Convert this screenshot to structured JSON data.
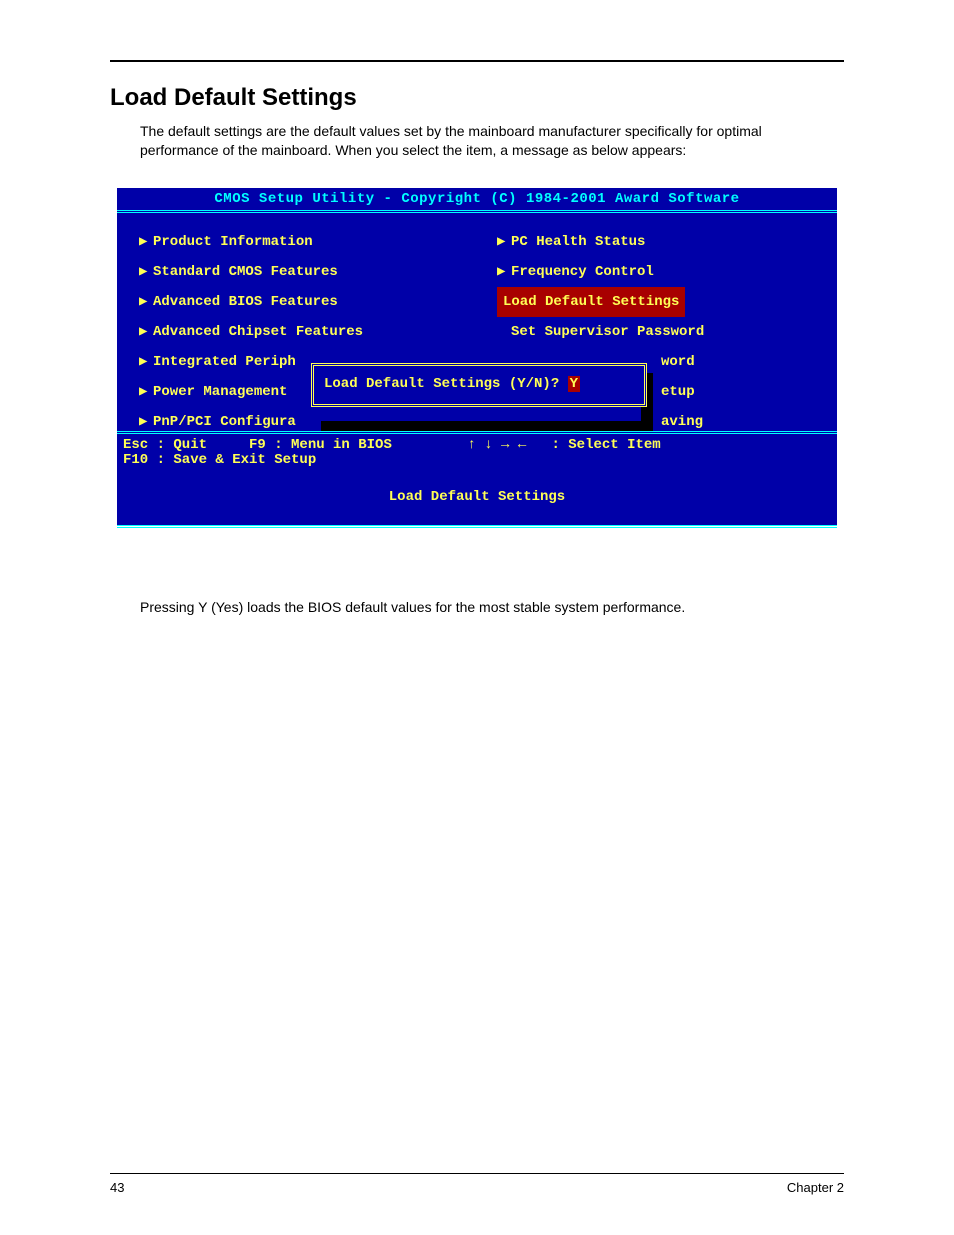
{
  "page": {
    "section_title": "Load Default Settings",
    "intro_paragraph": "The default settings are the default values set by the mainboard manufacturer specifically for optimal performance of the mainboard.  When you select the item, a message as below appears:",
    "post_paragraph": "Pressing Y (Yes) loads the BIOS default values for the most stable system performance.",
    "page_number": "43",
    "chapter_label": "Chapter 2"
  },
  "bios": {
    "colors": {
      "background": "#0000a8",
      "text_primary": "#ffff55",
      "text_header": "#00ffff",
      "highlight_bg": "#a80000",
      "shadow": "#000000"
    },
    "header": "CMOS Setup Utility - Copyright (C) 1984-2001 Award Software",
    "left_menu": [
      {
        "marker": "▶",
        "label": "Product Information"
      },
      {
        "marker": "▶",
        "label": "Standard CMOS Features"
      },
      {
        "marker": "▶",
        "label": "Advanced BIOS Features"
      },
      {
        "marker": "▶",
        "label": "Advanced Chipset Features"
      },
      {
        "marker": "▶",
        "label": "Integrated Periph"
      },
      {
        "marker": "▶",
        "label": "Power Management"
      },
      {
        "marker": "▶",
        "label": "PnP/PCI Configura"
      }
    ],
    "right_menu": [
      {
        "marker": "▶",
        "label": "PC Health Status"
      },
      {
        "marker": "▶",
        "label": "Frequency Control"
      },
      {
        "marker": "",
        "label": "Load Default Settings",
        "selected": true
      },
      {
        "marker": "",
        "label": "Set Supervisor Password"
      },
      {
        "marker": "",
        "label": "word",
        "fragment": true
      },
      {
        "marker": "",
        "label": "etup",
        "fragment": true
      },
      {
        "marker": "",
        "label": "aving",
        "fragment": true
      }
    ],
    "right_fragment_offset": "164px",
    "dialog": {
      "prompt": "Load Default Settings (Y/N)?",
      "answer": "Y"
    },
    "help_line1": "Esc : Quit     F9 : Menu in BIOS         ↑ ↓ → ←   : Select Item",
    "help_line2": "F10 : Save & Exit Setup",
    "status_line": "Load Default Settings"
  }
}
